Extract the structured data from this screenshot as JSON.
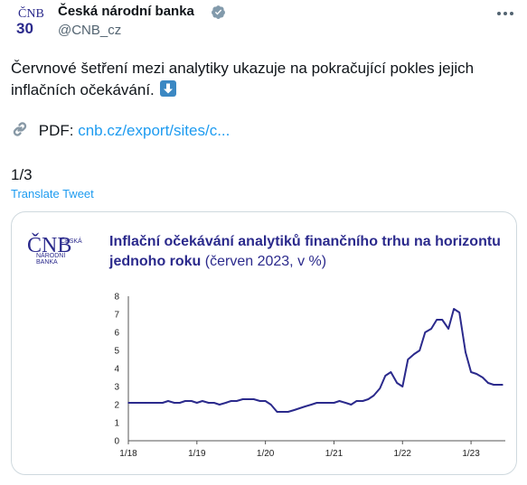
{
  "tweet": {
    "author_name": "Česká národní banka",
    "handle": "@CNB_cz",
    "text": "Červnové šetření mezi analytiky ukazuje na pokračující pokles jejich inflačních očekávání.",
    "pdf_label": "PDF:",
    "pdf_link": "cnb.cz/export/sites/c...",
    "counter": "1/3",
    "translate_label": "Translate Tweet"
  },
  "avatar": {
    "top": "ČNB",
    "number": "30"
  },
  "card": {
    "logo_main": "ČNB",
    "logo_sub1": "ČESKÁ",
    "logo_sub2": "NÁRODNÍ",
    "logo_sub3": "BANKA"
  },
  "icons": {
    "verified": "verified-badge-icon",
    "more": "more-options-icon",
    "link": "link-icon",
    "arrow": "down-arrow-emoji-icon"
  },
  "colors": {
    "link": "#1d9bf0",
    "chart_line": "#2b2a8c",
    "title": "#2b2a8c"
  },
  "chart_data": {
    "type": "line",
    "title": "Inflační očekávání analytiků finančního trhu na horizontu jednoho roku",
    "subtitle": "(červen 2023, v %)",
    "xlabel": "",
    "ylabel": "",
    "ylim": [
      0,
      8
    ],
    "yticks": [
      "0",
      "1",
      "2",
      "3",
      "4",
      "5",
      "6",
      "7",
      "8"
    ],
    "xticks": [
      {
        "x": 2018.0,
        "label": "1/18"
      },
      {
        "x": 2019.0,
        "label": "1/19"
      },
      {
        "x": 2020.0,
        "label": "1/20"
      },
      {
        "x": 2021.0,
        "label": "1/21"
      },
      {
        "x": 2022.0,
        "label": "1/22"
      },
      {
        "x": 2023.0,
        "label": "1/23"
      }
    ],
    "xlim": [
      2018.0,
      2023.5
    ],
    "grid": false,
    "series": [
      {
        "x": [
          2018.0,
          2018.25,
          2018.42,
          2018.5,
          2018.58,
          2018.67,
          2018.75,
          2018.83,
          2018.92,
          2019.0,
          2019.08,
          2019.17,
          2019.25,
          2019.33,
          2019.42,
          2019.5,
          2019.58,
          2019.67,
          2019.75,
          2019.83,
          2019.92,
          2020.0,
          2020.08,
          2020.17,
          2020.25,
          2020.33,
          2020.42,
          2020.5,
          2020.58,
          2020.67,
          2020.75,
          2020.83,
          2020.92,
          2021.0,
          2021.08,
          2021.17,
          2021.25,
          2021.33,
          2021.42,
          2021.5,
          2021.58,
          2021.67,
          2021.75,
          2021.83,
          2021.92,
          2022.0,
          2022.08,
          2022.17,
          2022.25,
          2022.33,
          2022.42,
          2022.5,
          2022.58,
          2022.67,
          2022.75,
          2022.83,
          2022.92,
          2023.0,
          2023.08,
          2023.17,
          2023.25,
          2023.33,
          2023.42,
          2023.46
        ],
        "values": [
          2.1,
          2.1,
          2.1,
          2.1,
          2.2,
          2.1,
          2.1,
          2.2,
          2.2,
          2.1,
          2.2,
          2.1,
          2.1,
          2.0,
          2.1,
          2.2,
          2.2,
          2.3,
          2.3,
          2.3,
          2.2,
          2.2,
          2.0,
          1.6,
          1.6,
          1.6,
          1.7,
          1.8,
          1.9,
          2.0,
          2.1,
          2.1,
          2.1,
          2.1,
          2.2,
          2.1,
          2.0,
          2.2,
          2.2,
          2.3,
          2.5,
          2.9,
          3.6,
          3.8,
          3.2,
          3.0,
          4.5,
          4.8,
          5.0,
          6.0,
          6.2,
          6.7,
          6.7,
          6.2,
          7.3,
          7.1,
          4.9,
          3.8,
          3.7,
          3.5,
          3.2,
          3.1,
          3.1,
          3.1
        ]
      }
    ]
  }
}
